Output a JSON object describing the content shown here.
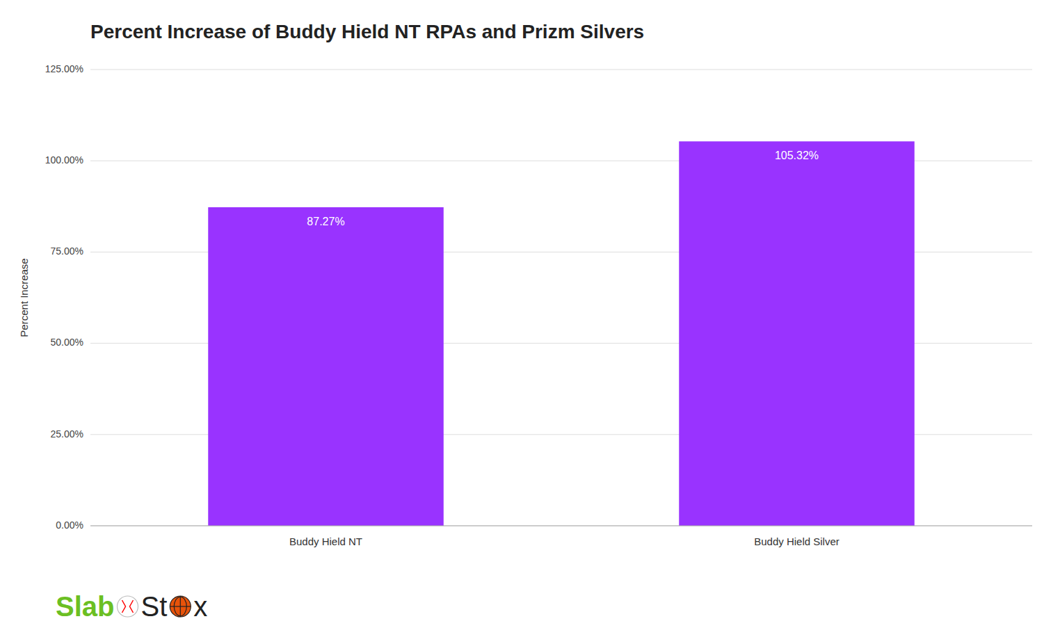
{
  "chart_data": {
    "type": "bar",
    "title": "Percent Increase of Buddy Hield NT RPAs and Prizm Silvers",
    "categories": [
      "Buddy Hield NT",
      "Buddy Hield Silver"
    ],
    "values": [
      87.27,
      105.32
    ],
    "value_labels": [
      "87.27%",
      "105.32%"
    ],
    "data_labels": true,
    "color": "#9933FF",
    "ylabel": "Percent Increase",
    "ylim": [
      0,
      125
    ],
    "yticks": [
      {
        "value": 0,
        "label": "0.00%"
      },
      {
        "value": 25,
        "label": "25.00%"
      },
      {
        "value": 50,
        "label": "50.00%"
      },
      {
        "value": 75,
        "label": "75.00%"
      },
      {
        "value": 100,
        "label": "100.00%"
      },
      {
        "value": 125,
        "label": "125.00%"
      }
    ],
    "grid": true,
    "annotations": [
      "Slab",
      "St",
      "x"
    ]
  }
}
